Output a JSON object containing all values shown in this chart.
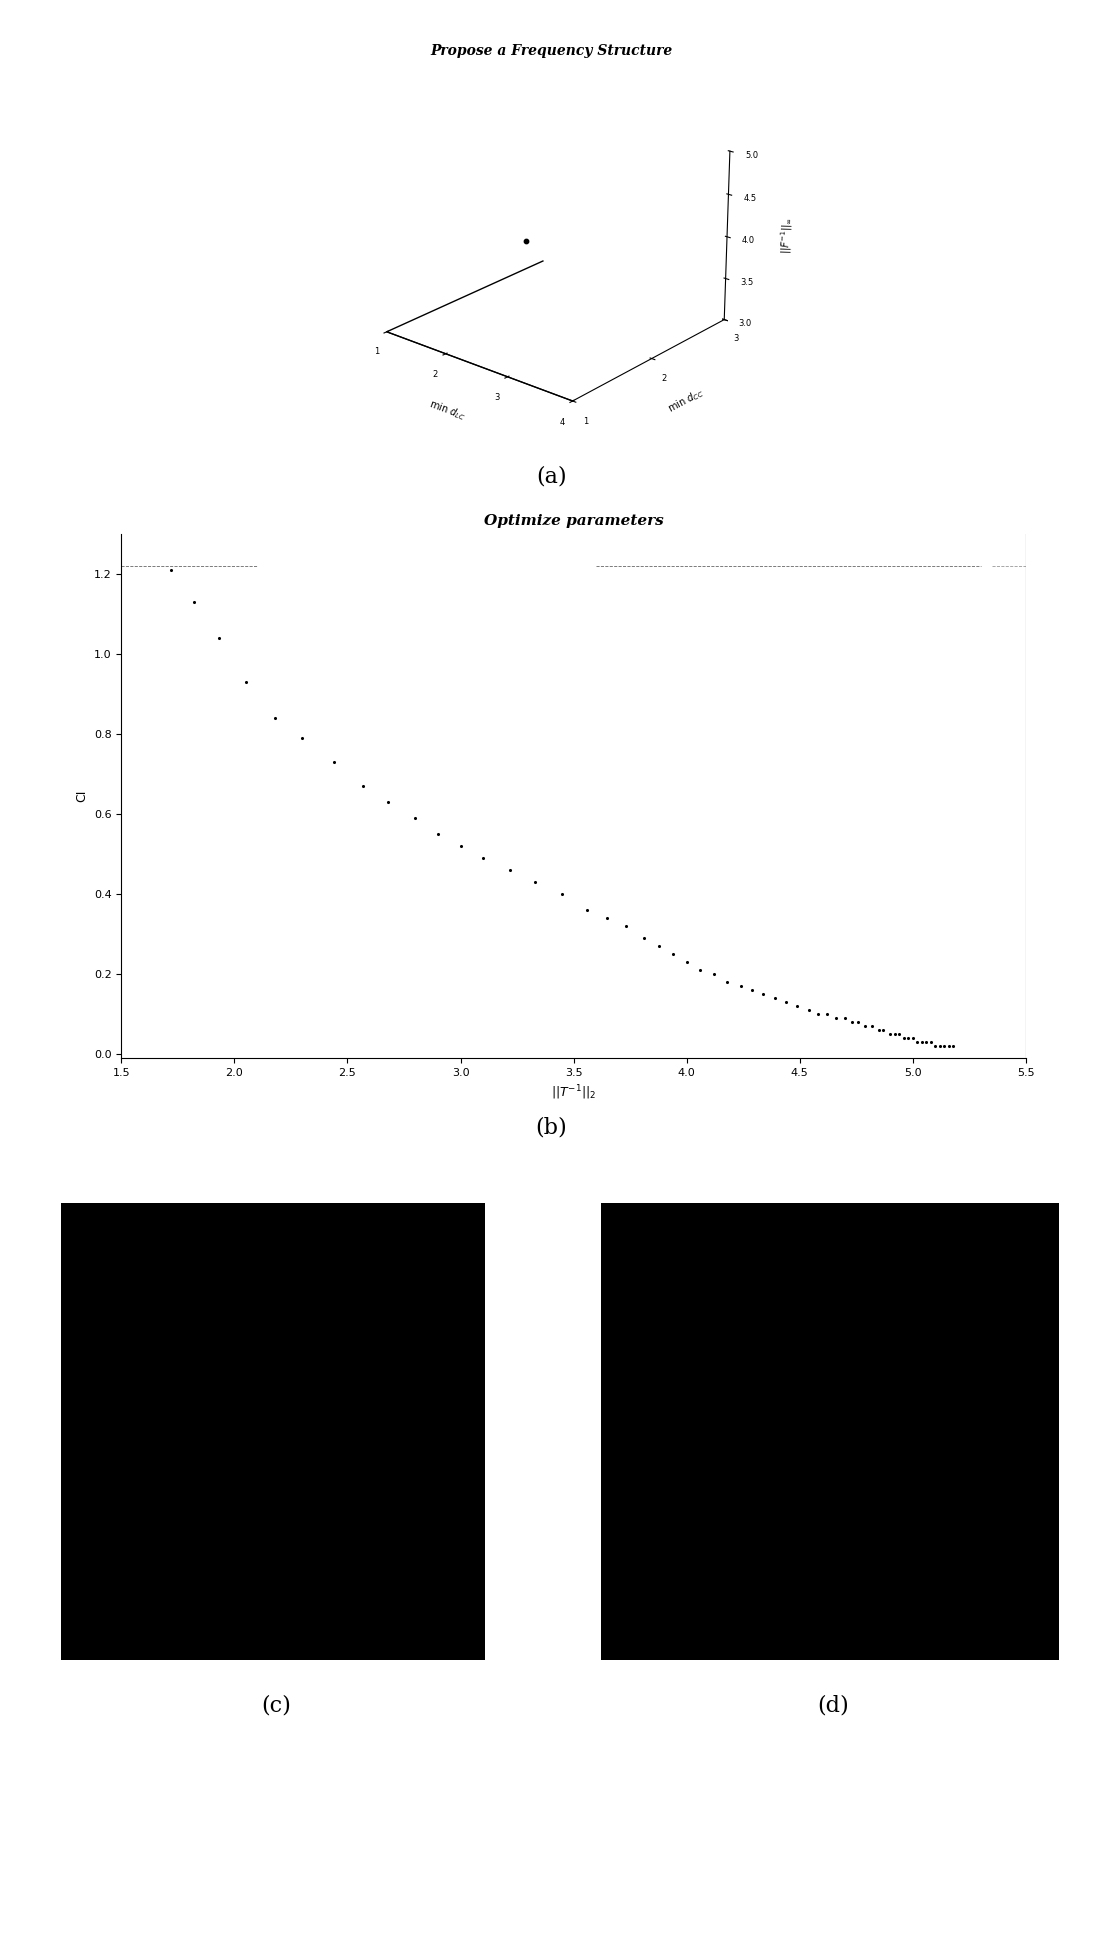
{
  "title_a": "Propose a Frequency Structure",
  "title_b": "Optimize parameters",
  "label_a": "(a)",
  "label_b": "(b)",
  "label_c": "(c)",
  "label_d": "(d)",
  "plot3d_point": [
    2.0,
    2.0,
    3.9
  ],
  "xlim_3d": [
    1,
    4
  ],
  "ylim_3d": [
    1,
    3
  ],
  "zlim_3d": [
    3,
    5
  ],
  "xticks_3d": [
    1,
    2,
    3,
    4
  ],
  "yticks_3d": [
    1,
    2,
    3
  ],
  "zticks_3d": [
    3.0,
    3.5,
    4.0,
    4.5,
    5.0
  ],
  "scatter_x": [
    1.72,
    1.82,
    1.93,
    2.05,
    2.18,
    2.3,
    2.44,
    2.57,
    2.68,
    2.8,
    2.9,
    3.0,
    3.1,
    3.22,
    3.33,
    3.45,
    3.56,
    3.65,
    3.73,
    3.81,
    3.88,
    3.94,
    4.0,
    4.06,
    4.12,
    4.18,
    4.24,
    4.29,
    4.34,
    4.39,
    4.44,
    4.49,
    4.54,
    4.58,
    4.62,
    4.66,
    4.7,
    4.73,
    4.76,
    4.79,
    4.82,
    4.85,
    4.87,
    4.9,
    4.92,
    4.94,
    4.96,
    4.98,
    5.0,
    5.02,
    5.04,
    5.06,
    5.08,
    5.1,
    5.12,
    5.14,
    5.16,
    5.18
  ],
  "scatter_y": [
    1.21,
    1.13,
    1.04,
    0.93,
    0.84,
    0.79,
    0.73,
    0.67,
    0.63,
    0.59,
    0.55,
    0.52,
    0.49,
    0.46,
    0.43,
    0.4,
    0.36,
    0.34,
    0.32,
    0.29,
    0.27,
    0.25,
    0.23,
    0.21,
    0.2,
    0.18,
    0.17,
    0.16,
    0.15,
    0.14,
    0.13,
    0.12,
    0.11,
    0.1,
    0.1,
    0.09,
    0.09,
    0.08,
    0.08,
    0.07,
    0.07,
    0.06,
    0.06,
    0.05,
    0.05,
    0.05,
    0.04,
    0.04,
    0.04,
    0.03,
    0.03,
    0.03,
    0.03,
    0.02,
    0.02,
    0.02,
    0.02,
    0.02
  ],
  "xlabel_b": "$||T^{-1}||_2$",
  "ylabel_b": "CI",
  "xlim_b": [
    1.5,
    5.5
  ],
  "ylim_b": [
    -0.01,
    1.3
  ],
  "xticks_b": [
    1.5,
    2.0,
    2.5,
    3.0,
    3.5,
    4.0,
    4.5,
    5.0,
    5.5
  ],
  "yticks_b": [
    0.0,
    0.2,
    0.4,
    0.6,
    0.8,
    1.0,
    1.2
  ],
  "bg_color": "#ffffff"
}
